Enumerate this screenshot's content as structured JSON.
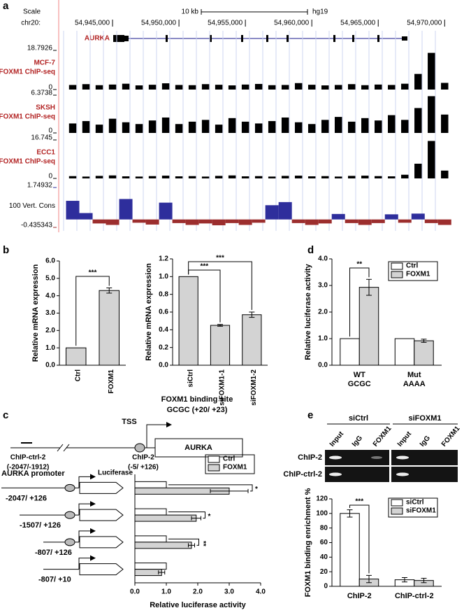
{
  "chart_data": [
    {
      "type": "genome-tracks",
      "panel": "a",
      "scale_label": "Scale",
      "scale_bar": "10 kb",
      "assembly": "hg19",
      "chrom": "chr20:",
      "gene": "AURKA",
      "xlim": [
        54941000,
        54970300
      ],
      "xticks": [
        {
          "value": 54945000,
          "label": "54,945,000"
        },
        {
          "value": 54950000,
          "label": "54,950,000"
        },
        {
          "value": 54955000,
          "label": "54,955,000"
        },
        {
          "value": 54960000,
          "label": "54,960,000"
        },
        {
          "value": 54965000,
          "label": "54,965,000"
        },
        {
          "value": 54970000,
          "label": "54,970,000"
        }
      ],
      "x": [
        54942000,
        54943000,
        54944000,
        54945000,
        54946000,
        54947000,
        54948000,
        54949000,
        54950000,
        54951000,
        54952000,
        54953000,
        54954000,
        54955000,
        54956000,
        54957000,
        54958000,
        54959000,
        54960000,
        54961000,
        54962000,
        54963000,
        54964000,
        54965000,
        54966000,
        54967000,
        54968000,
        54969000,
        54970000
      ],
      "tracks": [
        {
          "name": "MCF-7",
          "subtitle": "FOXM1 ChIP-seq",
          "color": "#000000",
          "ylim": [
            0,
            18.7926
          ],
          "yticks": [
            0,
            18.7926
          ],
          "values": [
            2.2,
            2.6,
            2.1,
            2.4,
            2.8,
            2.0,
            2.3,
            3.0,
            2.2,
            2.1,
            2.6,
            2.3,
            2.0,
            2.4,
            2.7,
            2.1,
            2.2,
            3.1,
            2.3,
            2.0,
            2.2,
            2.6,
            2.1,
            2.4,
            2.2,
            2.8,
            7.5,
            17.6,
            3.2
          ]
        },
        {
          "name": "SKSH",
          "subtitle": "FOXM1 ChIP-seq",
          "color": "#000000",
          "ylim": [
            0,
            6.3738
          ],
          "yticks": [
            0,
            6.3738
          ],
          "values": [
            1.6,
            2.0,
            1.4,
            2.4,
            1.8,
            1.5,
            2.1,
            2.6,
            1.5,
            1.9,
            2.2,
            1.4,
            2.5,
            1.9,
            1.6,
            2.0,
            2.6,
            1.8,
            1.5,
            2.2,
            2.7,
            1.9,
            2.5,
            2.1,
            3.0,
            2.2,
            4.2,
            6.2,
            3.1
          ]
        },
        {
          "name": "ECC1",
          "subtitle": "FOXM1 ChIP-seq",
          "color": "#000000",
          "ylim": [
            0,
            16.745
          ],
          "yticks": [
            0,
            16.745
          ],
          "values": [
            1.0,
            0.8,
            1.1,
            1.3,
            0.9,
            0.8,
            1.0,
            1.2,
            0.9,
            1.0,
            0.8,
            1.1,
            1.3,
            0.9,
            1.0,
            0.8,
            1.1,
            1.2,
            0.9,
            1.0,
            0.8,
            1.1,
            1.2,
            1.0,
            0.9,
            1.6,
            6.4,
            16.3,
            3.4
          ]
        },
        {
          "name": "100 Vert. Cons",
          "color": "#2e2e9c",
          "negative_color": "#9c2e2e",
          "ylim": [
            -0.435343,
            1.74932
          ],
          "yticks": [
            -0.435343,
            1.74932
          ],
          "values": [
            1.02,
            0.35,
            -0.22,
            -0.3,
            1.12,
            -0.18,
            -0.28,
            0.92,
            -0.2,
            -0.3,
            -0.22,
            -0.32,
            -0.2,
            -0.3,
            -0.18,
            0.78,
            0.95,
            -0.2,
            -0.3,
            -0.22,
            0.3,
            -0.2,
            -0.3,
            -0.2,
            0.28,
            -0.18,
            0.32,
            -0.2,
            -0.3
          ]
        }
      ]
    },
    {
      "type": "bar",
      "panel": "b",
      "ylabel": "Relative mRNA expression",
      "categories": [
        "Ctrl",
        "FOXM1"
      ],
      "values": [
        1.0,
        4.3
      ],
      "errors": [
        null,
        0.15
      ],
      "color": "#d3d3d3",
      "ylim": [
        0,
        6
      ],
      "yticks": [
        {
          "value": 0,
          "label": "0.0"
        },
        {
          "value": 1,
          "label": "1.0"
        },
        {
          "value": 2,
          "label": "2.0"
        },
        {
          "value": 3,
          "label": "3.0"
        },
        {
          "value": 4,
          "label": "4.0"
        },
        {
          "value": 5,
          "label": "5.0"
        },
        {
          "value": 6,
          "label": "6.0"
        }
      ],
      "annotations": [
        "***"
      ]
    },
    {
      "type": "bar",
      "ylabel": "Relative mRNA expression",
      "categories": [
        "siCtrl",
        "siFOXM1-1",
        "siFOXM1-2"
      ],
      "values": [
        1.0,
        0.45,
        0.57
      ],
      "errors": [
        null,
        0.01,
        0.03
      ],
      "color": "#d3d3d3",
      "ylim": [
        0,
        1.2
      ],
      "yticks": [
        {
          "value": 0,
          "label": "0.0"
        },
        0.2,
        0.4,
        0.6,
        0.8,
        {
          "value": 1,
          "label": "1.0"
        },
        1.2
      ],
      "annotations": [
        "***",
        "***"
      ]
    },
    {
      "type": "bar",
      "panel": "d",
      "ylabel": "Relative luciferase activity",
      "categories": [
        "WT",
        "Mut"
      ],
      "sublabels": [
        "GCGC",
        "AAAA"
      ],
      "series": [
        {
          "name": "Ctrl",
          "color": "#ffffff",
          "values": [
            1.0,
            1.0
          ],
          "errors": [
            null,
            null
          ]
        },
        {
          "name": "FOXM1",
          "color": "#d3d3d3",
          "values": [
            2.93,
            0.92
          ],
          "errors": [
            0.3,
            0.06
          ]
        }
      ],
      "ylim": [
        0,
        4
      ],
      "yticks": [
        {
          "value": 0,
          "label": "0.0"
        },
        {
          "value": 1,
          "label": "1.0"
        },
        {
          "value": 2,
          "label": "2.0"
        },
        {
          "value": 3,
          "label": "3.0"
        },
        {
          "value": 4,
          "label": "4.0"
        }
      ],
      "annotations": [
        "**"
      ]
    },
    {
      "type": "hbar",
      "panel": "c",
      "xlabel": "Relative luciferase activity",
      "categories": [
        "-2047/ +126",
        "-1507/ +126",
        "-807/ +126",
        "-807/ +10"
      ],
      "series": [
        {
          "name": "Ctrl",
          "color": "#ffffff",
          "values": [
            1.0,
            1.0,
            1.0,
            1.0
          ],
          "errors": [
            null,
            null,
            null,
            null
          ]
        },
        {
          "name": "FOXM1",
          "color": "#d3d3d3",
          "values": [
            3.0,
            1.95,
            1.8,
            0.85
          ],
          "errors": [
            0.6,
            0.15,
            0.1,
            0.1
          ]
        }
      ],
      "xlim": [
        0,
        4
      ],
      "xticks": [
        {
          "value": 0,
          "label": "0.0"
        },
        {
          "value": 1,
          "label": "1.0"
        },
        {
          "value": 2,
          "label": "2.0"
        },
        {
          "value": 3,
          "label": "3.0"
        },
        {
          "value": 4,
          "label": "4.0"
        }
      ],
      "annotations": [
        "*",
        "*",
        "**"
      ],
      "diagram": {
        "binding_site": "FOXM1 binding site",
        "binding_motif": "GCGC (+20/ +23)",
        "tss": "TSS",
        "gene": "AURKA",
        "ctrl_region": "ChIP-ctrl-2",
        "ctrl_range": "(-2047/-1912)",
        "chip_region": "ChIP-2",
        "chip_range": "(-5/ +126)",
        "promoter": "AURKA promoter",
        "reporter": "Luciferase"
      }
    },
    {
      "type": "bar",
      "panel": "e",
      "ylabel": "FOXM1 binding enrichment %",
      "categories": [
        "ChIP-2",
        "ChIP-ctrl-2"
      ],
      "series": [
        {
          "name": "siCtrl",
          "color": "#ffffff",
          "values": [
            100,
            9
          ],
          "errors": [
            5,
            3
          ]
        },
        {
          "name": "siFOXM1",
          "color": "#d3d3d3",
          "values": [
            10,
            8
          ],
          "errors": [
            5,
            3
          ]
        }
      ],
      "ylim": [
        0,
        120
      ],
      "yticks": [
        0,
        20,
        40,
        60,
        80,
        100,
        120
      ],
      "annotations": [
        "***"
      ],
      "gel": {
        "groups": [
          "siCtrl",
          "siFOXM1"
        ],
        "lanes": [
          "Input",
          "IgG",
          "FOXM1",
          "Input",
          "IgG",
          "FOXM1"
        ],
        "rows": [
          "ChIP-2",
          "ChIP-ctrl-2"
        ]
      }
    }
  ]
}
